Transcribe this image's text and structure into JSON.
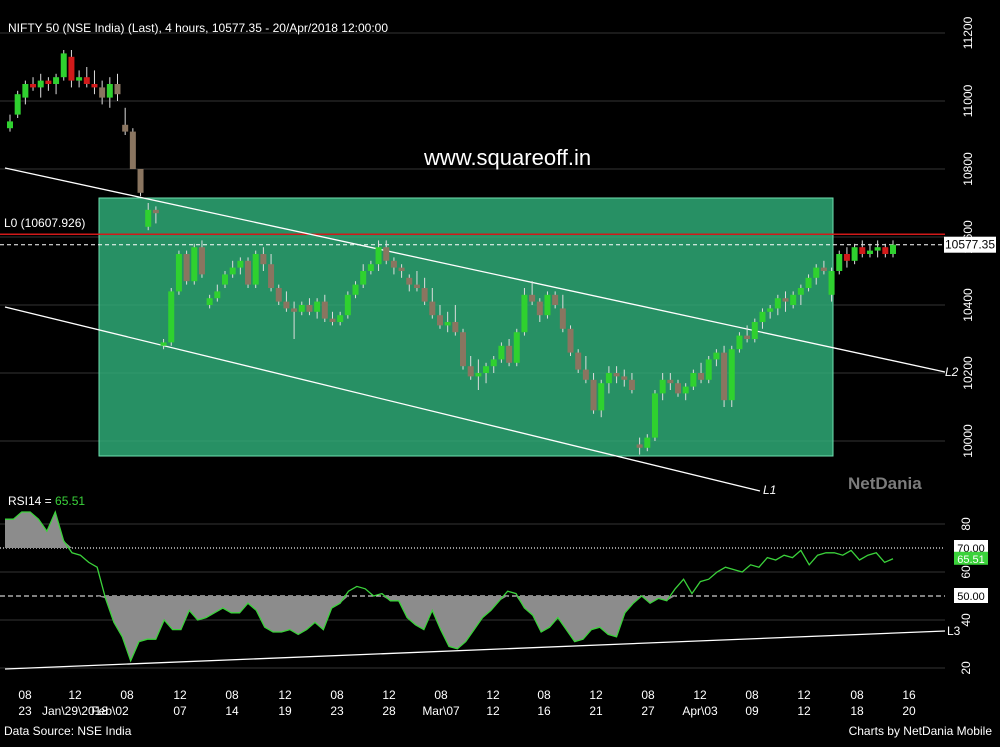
{
  "header": {
    "title": "NIFTY 50 (NSE India) (Last), 4 hours, 10577.35 - 20/Apr/2018 12:00:00"
  },
  "watermark": "www.squareoff.in",
  "netdania_logo": "NetDania",
  "footer": {
    "left": "Data Source: NSE India",
    "right": "Charts by NetDania Mobile"
  },
  "level_label": "L0 (10607.926)",
  "last_price_label": "10577.35",
  "line_labels": {
    "l1": "L1",
    "l2": "L2",
    "l3": "L3"
  },
  "rsi": {
    "label": "RSI14 = ",
    "value": "65.51",
    "levels": [
      "70.00",
      "50.00"
    ],
    "axis_ticks": [
      80,
      60,
      40,
      20
    ],
    "series": [
      82,
      82,
      85,
      85,
      82,
      77,
      85,
      73,
      68,
      67,
      64,
      62,
      49,
      39,
      33,
      23,
      31,
      32,
      32,
      40,
      36,
      36,
      44,
      40,
      41,
      43,
      45,
      43,
      43,
      47,
      44,
      37,
      35,
      35,
      36,
      34,
      36,
      39,
      36,
      45,
      47,
      52,
      54,
      53,
      50,
      51,
      48,
      48,
      41,
      38,
      36,
      44,
      36,
      29,
      28,
      31,
      36,
      41,
      44,
      48,
      52,
      51,
      45,
      42,
      35,
      37,
      41,
      36,
      31,
      32,
      36,
      37,
      34,
      33,
      43,
      47,
      50,
      47,
      49,
      48,
      53,
      57,
      51,
      56,
      57,
      60,
      62,
      61,
      60,
      63,
      62,
      66,
      65,
      67,
      66,
      69,
      63,
      67,
      68,
      68,
      67,
      69,
      65,
      67,
      68,
      64,
      65.51
    ],
    "colors": {
      "line": "#3bd23b",
      "fill": "#8c8c8c",
      "level70": "#c8c8c8",
      "level50": "#ffffff"
    }
  },
  "chart_data": {
    "type": "candlestick",
    "title": "NIFTY 50 (NSE India) (Last), 4 hours, 10577.35 - 20/Apr/2018 12:00:00",
    "y_axis_ticks": [
      11200,
      11000,
      10800,
      10600,
      10400,
      10200,
      10000
    ],
    "x_axis_ticks": [
      {
        "top": "08",
        "bottom": "23"
      },
      {
        "top": "12",
        "bottom": "Jan\\29\\2018"
      },
      {
        "top": "",
        "bottom": "Feb\\02"
      },
      {
        "top": "08",
        "bottom": ""
      },
      {
        "top": "12",
        "bottom": "07"
      },
      {
        "top": "08",
        "bottom": "14"
      },
      {
        "top": "12",
        "bottom": "19"
      },
      {
        "top": "08",
        "bottom": "23"
      },
      {
        "top": "12",
        "bottom": "28"
      },
      {
        "top": "08",
        "bottom": "Mar\\07"
      },
      {
        "top": "12",
        "bottom": "12"
      },
      {
        "top": "08",
        "bottom": "16"
      },
      {
        "top": "12",
        "bottom": "21"
      },
      {
        "top": "08",
        "bottom": "27"
      },
      {
        "top": "12",
        "bottom": "Apr\\03"
      },
      {
        "top": "08",
        "bottom": "09"
      },
      {
        "top": "12",
        "bottom": "12"
      },
      {
        "top": "08",
        "bottom": "18"
      },
      {
        "top": "16",
        "bottom": "20"
      }
    ],
    "candles": [
      [
        10920,
        10960,
        10910,
        10940
      ],
      [
        10960,
        11030,
        10950,
        11020
      ],
      [
        11010,
        11060,
        10990,
        11050
      ],
      [
        11050,
        11070,
        11030,
        11040
      ],
      [
        11040,
        11080,
        11010,
        11060
      ],
      [
        11060,
        11070,
        11030,
        11050
      ],
      [
        11050,
        11080,
        11020,
        11070
      ],
      [
        11070,
        11150,
        11060,
        11140
      ],
      [
        11130,
        11150,
        11040,
        11060
      ],
      [
        11060,
        11090,
        11040,
        11070
      ],
      [
        11070,
        11100,
        11040,
        11050
      ],
      [
        11050,
        11090,
        11020,
        11040
      ],
      [
        11040,
        11060,
        10990,
        11010
      ],
      [
        11010,
        11070,
        10980,
        11050
      ],
      [
        11050,
        11080,
        11000,
        11020
      ],
      [
        10930,
        10980,
        10900,
        10910
      ],
      [
        10910,
        10920,
        10800,
        10800
      ],
      [
        10800,
        10800,
        10720,
        10730
      ],
      [
        10630,
        10700,
        10620,
        10680
      ],
      [
        10680,
        10690,
        10640,
        10670
      ],
      [
        10280,
        10300,
        10270,
        10290
      ],
      [
        10290,
        10450,
        10280,
        10440
      ],
      [
        10440,
        10560,
        10430,
        10550
      ],
      [
        10550,
        10560,
        10460,
        10470
      ],
      [
        10470,
        10580,
        10460,
        10570
      ],
      [
        10570,
        10590,
        10480,
        10490
      ],
      [
        10400,
        10430,
        10390,
        10420
      ],
      [
        10420,
        10460,
        10410,
        10440
      ],
      [
        10460,
        10500,
        10450,
        10490
      ],
      [
        10490,
        10530,
        10480,
        10510
      ],
      [
        10510,
        10540,
        10490,
        10530
      ],
      [
        10530,
        10540,
        10450,
        10460
      ],
      [
        10460,
        10560,
        10450,
        10550
      ],
      [
        10550,
        10570,
        10500,
        10520
      ],
      [
        10520,
        10550,
        10440,
        10450
      ],
      [
        10450,
        10460,
        10400,
        10410
      ],
      [
        10410,
        10440,
        10380,
        10390
      ],
      [
        10390,
        10410,
        10300,
        10380
      ],
      [
        10380,
        10410,
        10370,
        10400
      ],
      [
        10400,
        10420,
        10370,
        10380
      ],
      [
        10380,
        10420,
        10360,
        10410
      ],
      [
        10410,
        10430,
        10350,
        10360
      ],
      [
        10360,
        10380,
        10340,
        10350
      ],
      [
        10350,
        10380,
        10340,
        10370
      ],
      [
        10370,
        10440,
        10360,
        10430
      ],
      [
        10430,
        10470,
        10420,
        10460
      ],
      [
        10460,
        10520,
        10450,
        10500
      ],
      [
        10500,
        10530,
        10490,
        10520
      ],
      [
        10520,
        10590,
        10500,
        10570
      ],
      [
        10570,
        10590,
        10520,
        10530
      ],
      [
        10530,
        10540,
        10490,
        10510
      ],
      [
        10510,
        10520,
        10480,
        10500
      ],
      [
        10480,
        10490,
        10440,
        10460
      ],
      [
        10460,
        10500,
        10440,
        10450
      ],
      [
        10450,
        10480,
        10400,
        10410
      ],
      [
        10410,
        10450,
        10360,
        10370
      ],
      [
        10370,
        10400,
        10330,
        10340
      ],
      [
        10340,
        10380,
        10320,
        10350
      ],
      [
        10350,
        10400,
        10310,
        10320
      ],
      [
        10320,
        10330,
        10210,
        10220
      ],
      [
        10220,
        10250,
        10180,
        10190
      ],
      [
        10190,
        10240,
        10150,
        10200
      ],
      [
        10200,
        10230,
        10170,
        10220
      ],
      [
        10220,
        10250,
        10200,
        10240
      ],
      [
        10240,
        10290,
        10230,
        10280
      ],
      [
        10280,
        10300,
        10220,
        10230
      ],
      [
        10230,
        10330,
        10220,
        10320
      ],
      [
        10320,
        10450,
        10310,
        10430
      ],
      [
        10430,
        10470,
        10400,
        10410
      ],
      [
        10410,
        10420,
        10350,
        10370
      ],
      [
        10370,
        10440,
        10360,
        10430
      ],
      [
        10430,
        10440,
        10390,
        10400
      ],
      [
        10390,
        10430,
        10320,
        10330
      ],
      [
        10330,
        10340,
        10250,
        10260
      ],
      [
        10260,
        10270,
        10200,
        10210
      ],
      [
        10210,
        10250,
        10170,
        10180
      ],
      [
        10180,
        10200,
        10080,
        10090
      ],
      [
        10090,
        10180,
        10070,
        10170
      ],
      [
        10170,
        10220,
        10140,
        10200
      ],
      [
        10200,
        10220,
        10170,
        10190
      ],
      [
        10190,
        10210,
        10160,
        10180
      ],
      [
        10180,
        10200,
        10140,
        10150
      ],
      [
        9990,
        10010,
        9960,
        9980
      ],
      [
        9980,
        10020,
        9970,
        10010
      ],
      [
        10010,
        10150,
        10000,
        10140
      ],
      [
        10140,
        10200,
        10120,
        10180
      ],
      [
        10180,
        10200,
        10150,
        10170
      ],
      [
        10170,
        10180,
        10130,
        10140
      ],
      [
        10140,
        10170,
        10120,
        10160
      ],
      [
        10160,
        10210,
        10150,
        10200
      ],
      [
        10200,
        10230,
        10170,
        10180
      ],
      [
        10180,
        10250,
        10170,
        10240
      ],
      [
        10240,
        10270,
        10220,
        10260
      ],
      [
        10260,
        10280,
        10100,
        10120
      ],
      [
        10120,
        10280,
        10100,
        10270
      ],
      [
        10270,
        10320,
        10260,
        10310
      ],
      [
        10310,
        10340,
        10290,
        10300
      ],
      [
        10300,
        10360,
        10290,
        10350
      ],
      [
        10350,
        10390,
        10330,
        10380
      ],
      [
        10380,
        10400,
        10360,
        10390
      ],
      [
        10390,
        10430,
        10370,
        10420
      ],
      [
        10420,
        10440,
        10380,
        10410
      ],
      [
        10400,
        10440,
        10390,
        10430
      ],
      [
        10430,
        10460,
        10400,
        10450
      ],
      [
        10450,
        10490,
        10440,
        10480
      ],
      [
        10480,
        10520,
        10460,
        10510
      ],
      [
        10510,
        10530,
        10490,
        10500
      ],
      [
        10430,
        10510,
        10410,
        10500
      ],
      [
        10500,
        10560,
        10490,
        10550
      ],
      [
        10550,
        10570,
        10510,
        10530
      ],
      [
        10530,
        10580,
        10520,
        10570
      ],
      [
        10570,
        10590,
        10540,
        10550
      ],
      [
        10550,
        10580,
        10540,
        10560
      ],
      [
        10560,
        10590,
        10540,
        10570
      ],
      [
        10570,
        10580,
        10540,
        10550
      ],
      [
        10550,
        10590,
        10540,
        10577.35
      ]
    ],
    "candle_fields": [
      "open",
      "high",
      "low",
      "close"
    ],
    "last_price": 10577.35,
    "resistance_level": 10607.926,
    "colors": {
      "up": "#2fd12f",
      "down": "#d11a1a",
      "neutral": "#8a7560",
      "range_box": "#2fb07a",
      "resistance": "#d11a1a"
    }
  }
}
